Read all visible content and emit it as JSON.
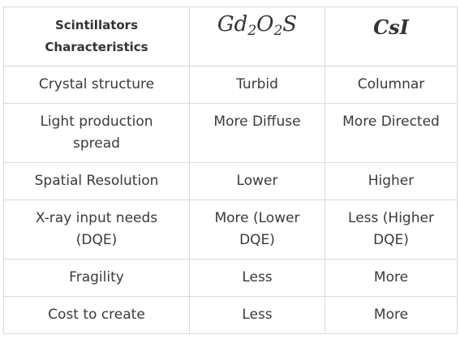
{
  "header": {
    "label_line1": "Scintillators",
    "label_line2": "Characteristics",
    "col2_base1": "Gd",
    "col2_sub1": "2",
    "col2_base2": "O",
    "col2_sub2": "2",
    "col2_base3": "S",
    "col3": "CsI"
  },
  "rows": [
    {
      "label": "Crystal structure",
      "gd": "Turbid",
      "csi": "Columnar"
    },
    {
      "label_line1": "Light production",
      "label_line2": "spread",
      "gd": "More Diffuse",
      "csi": "More Directed"
    },
    {
      "label": "Spatial Resolution",
      "gd": "Lower",
      "csi": "Higher"
    },
    {
      "label_line1": "X-ray input needs",
      "label_line2": "(DQE)",
      "gd_line1": "More (Lower",
      "gd_line2": "DQE)",
      "csi_line1": "Less (Higher",
      "csi_line2": "DQE)"
    },
    {
      "label": "Fragility",
      "gd": "Less",
      "csi": "More"
    },
    {
      "label": "Cost to create",
      "gd": "Less",
      "csi": "More"
    }
  ]
}
